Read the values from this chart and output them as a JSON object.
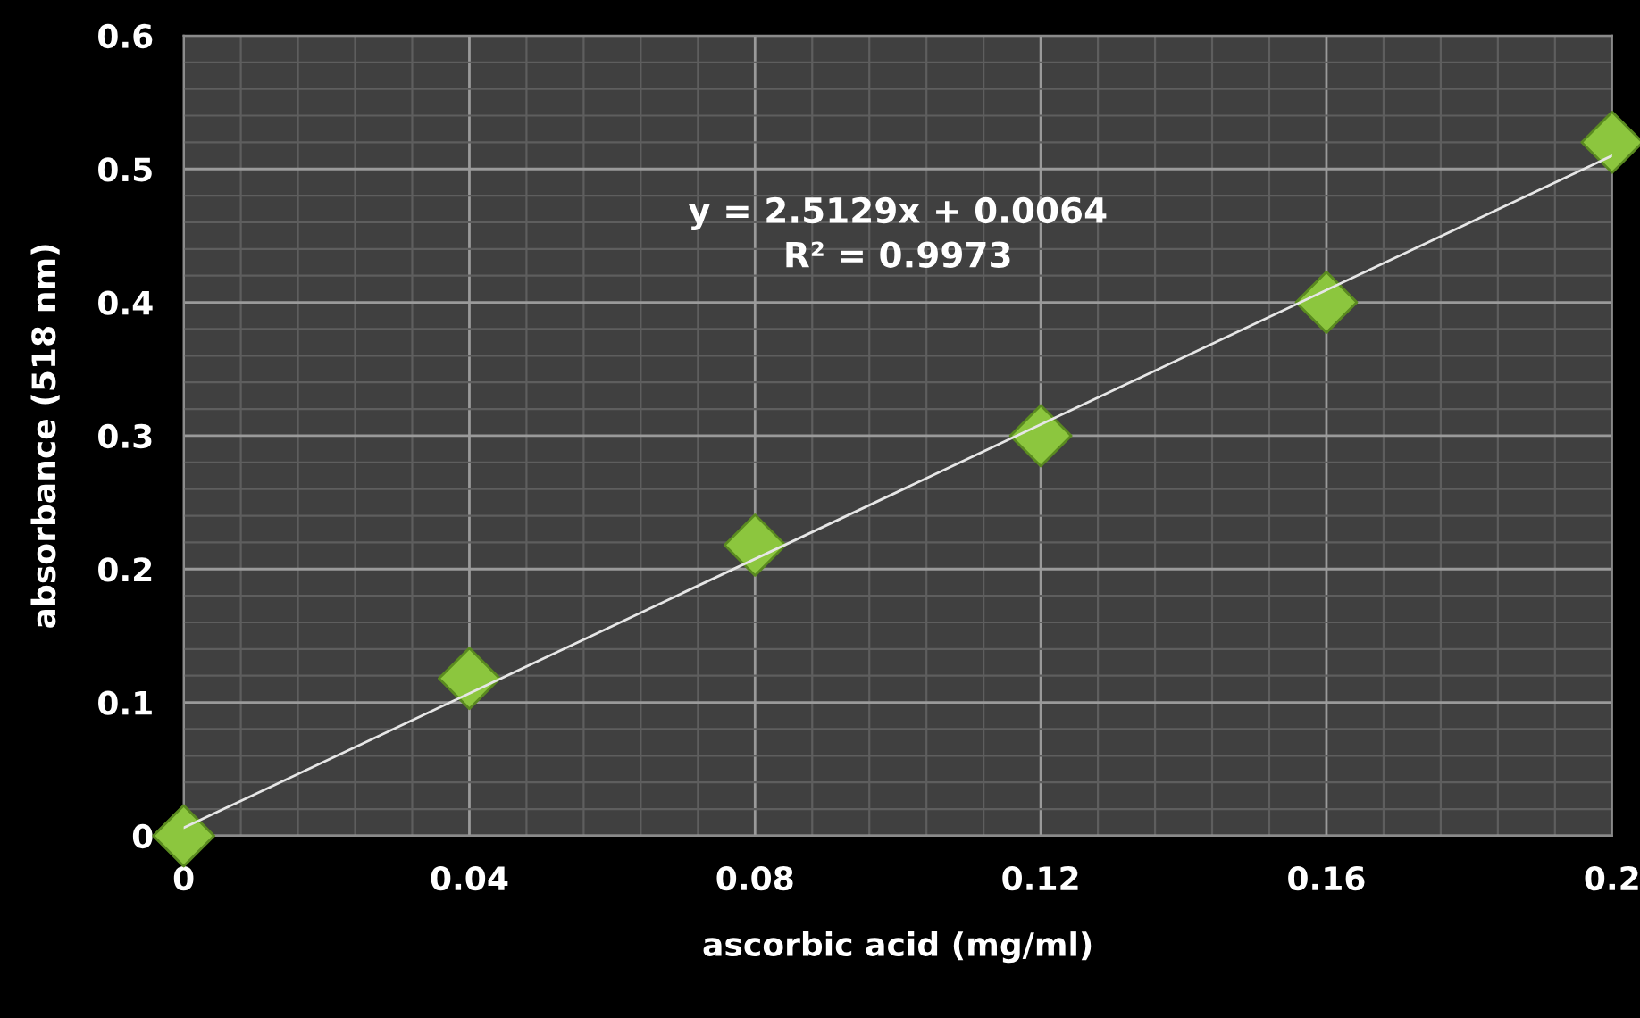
{
  "chart_data": {
    "type": "scatter",
    "xlabel": "ascorbic acid (mg/ml)",
    "ylabel": "absorbance (518 nm)",
    "x": [
      0,
      0.04,
      0.08,
      0.12,
      0.16,
      0.2
    ],
    "series": [
      {
        "color": "#8cc63e",
        "marker": "diamond",
        "values": [
          0,
          0.118,
          0.218,
          0.3,
          0.4,
          0.52
        ]
      },
      {
        "type": "line",
        "color": "#e6e6e6",
        "line_style": "solid",
        "marker": "none",
        "x": [
          0,
          0.2
        ],
        "values": [
          0.006,
          0.51
        ]
      }
    ],
    "annotations": [
      "y = 2.5129x + 0.0064",
      "R² = 0.9973"
    ],
    "xlim": [
      0,
      0.2
    ],
    "ylim": [
      0,
      0.6
    ],
    "xticks": [
      0,
      0.04,
      0.08,
      0.12,
      0.16,
      0.2
    ],
    "yticks": [
      0,
      0.1,
      0.2,
      0.3,
      0.4,
      0.5,
      0.6
    ],
    "grid": true,
    "legend": false
  }
}
